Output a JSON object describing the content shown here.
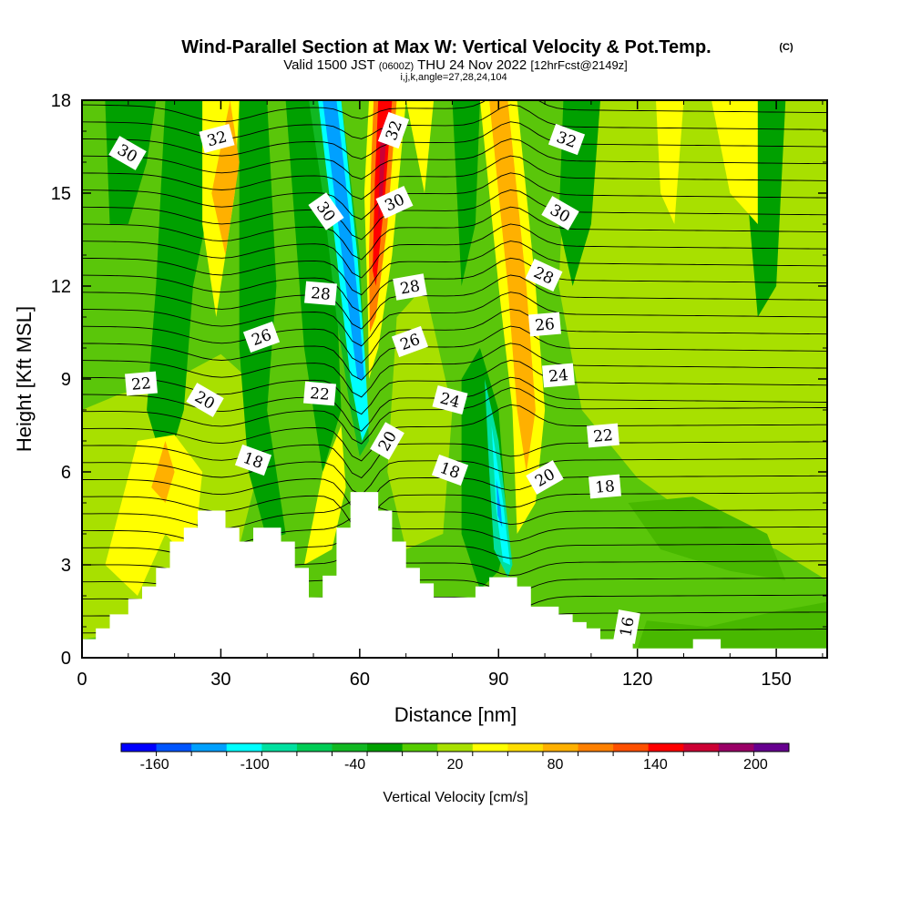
{
  "header": {
    "title": "Wind-Parallel Section at Max W: Vertical Velocity & Pot.Temp.",
    "copyright": "(C)",
    "subtitle_part1": "Valid 1500 JST",
    "subtitle_utc": "(0600Z)",
    "subtitle_part2": "THU 24 Nov 2022",
    "subtitle_fcst": "[12hrFcst@2149z]",
    "subtitle_index": "i,j,k,angle=27,28,24,104"
  },
  "chart_data": {
    "type": "heatmap",
    "xlabel": "Distance [nm]",
    "ylabel": "Height [Kft MSL]",
    "xlim": [
      0,
      161
    ],
    "ylim": [
      0,
      18
    ],
    "x_ticks": [
      "0",
      "30",
      "60",
      "90",
      "120",
      "150"
    ],
    "y_ticks": [
      "0",
      "3",
      "6",
      "9",
      "12",
      "15",
      "18"
    ],
    "x_tick_values": [
      0,
      30,
      60,
      90,
      120,
      150
    ],
    "y_tick_values": [
      0,
      3,
      6,
      9,
      12,
      15,
      18
    ],
    "colorbar": {
      "label": "Vertical Velocity [cm/s]",
      "tick_labels": [
        "-160",
        "-100",
        "-40",
        "20",
        "80",
        "140",
        "200"
      ],
      "colors": [
        "#0000ff",
        "#0055ff",
        "#00a0ff",
        "#00ffff",
        "#00e0a0",
        "#00cc55",
        "#11b822",
        "#00a000",
        "#55cc00",
        "#a8e000",
        "#ffff00",
        "#ffdd00",
        "#ffb000",
        "#ff8000",
        "#ff5000",
        "#ff0000",
        "#cc0033",
        "#990066",
        "#66008f"
      ]
    },
    "contour_labels": [
      "30",
      "32",
      "32",
      "30",
      "30",
      "32",
      "30",
      "28",
      "28",
      "28",
      "26",
      "26",
      "26",
      "22",
      "20",
      "22",
      "24",
      "24",
      "22",
      "18",
      "20",
      "18",
      "20",
      "18",
      "16"
    ],
    "terrain": [
      [
        0,
        0.6
      ],
      [
        3,
        0.6
      ],
      [
        3,
        0.95
      ],
      [
        6,
        0.95
      ],
      [
        6,
        1.4
      ],
      [
        10,
        1.4
      ],
      [
        10,
        1.9
      ],
      [
        13,
        1.9
      ],
      [
        13,
        2.3
      ],
      [
        16,
        2.3
      ],
      [
        16,
        2.9
      ],
      [
        19,
        2.9
      ],
      [
        19,
        3.75
      ],
      [
        22,
        3.75
      ],
      [
        22,
        4.2
      ],
      [
        25,
        4.2
      ],
      [
        25,
        4.75
      ],
      [
        31,
        4.75
      ],
      [
        31,
        4.2
      ],
      [
        34,
        4.2
      ],
      [
        34,
        3.75
      ],
      [
        37,
        3.75
      ],
      [
        37,
        4.2
      ],
      [
        43,
        4.2
      ],
      [
        43,
        3.75
      ],
      [
        46,
        3.75
      ],
      [
        46,
        2.9
      ],
      [
        49,
        2.9
      ],
      [
        49,
        1.95
      ],
      [
        52,
        1.95
      ],
      [
        52,
        2.65
      ],
      [
        55,
        2.65
      ],
      [
        55,
        4.2
      ],
      [
        58,
        4.2
      ],
      [
        58,
        5.35
      ],
      [
        64,
        5.35
      ],
      [
        64,
        4.75
      ],
      [
        67,
        4.75
      ],
      [
        67,
        3.75
      ],
      [
        70,
        3.75
      ],
      [
        70,
        2.9
      ],
      [
        73,
        2.9
      ],
      [
        73,
        2.4
      ],
      [
        76,
        2.4
      ],
      [
        76,
        1.95
      ],
      [
        85,
        1.95
      ],
      [
        85,
        2.3
      ],
      [
        88,
        2.3
      ],
      [
        88,
        2.6
      ],
      [
        94,
        2.6
      ],
      [
        94,
        2.3
      ],
      [
        97,
        2.3
      ],
      [
        97,
        1.65
      ],
      [
        103,
        1.65
      ],
      [
        103,
        1.4
      ],
      [
        106,
        1.4
      ],
      [
        106,
        1.15
      ],
      [
        109,
        1.15
      ],
      [
        109,
        0.95
      ],
      [
        112,
        0.95
      ],
      [
        112,
        0.6
      ],
      [
        119,
        0.6
      ],
      [
        119,
        0.3
      ],
      [
        132,
        0.3
      ],
      [
        132,
        0.6
      ],
      [
        138,
        0.6
      ],
      [
        138,
        0.3
      ],
      [
        161,
        0.3
      ]
    ]
  }
}
